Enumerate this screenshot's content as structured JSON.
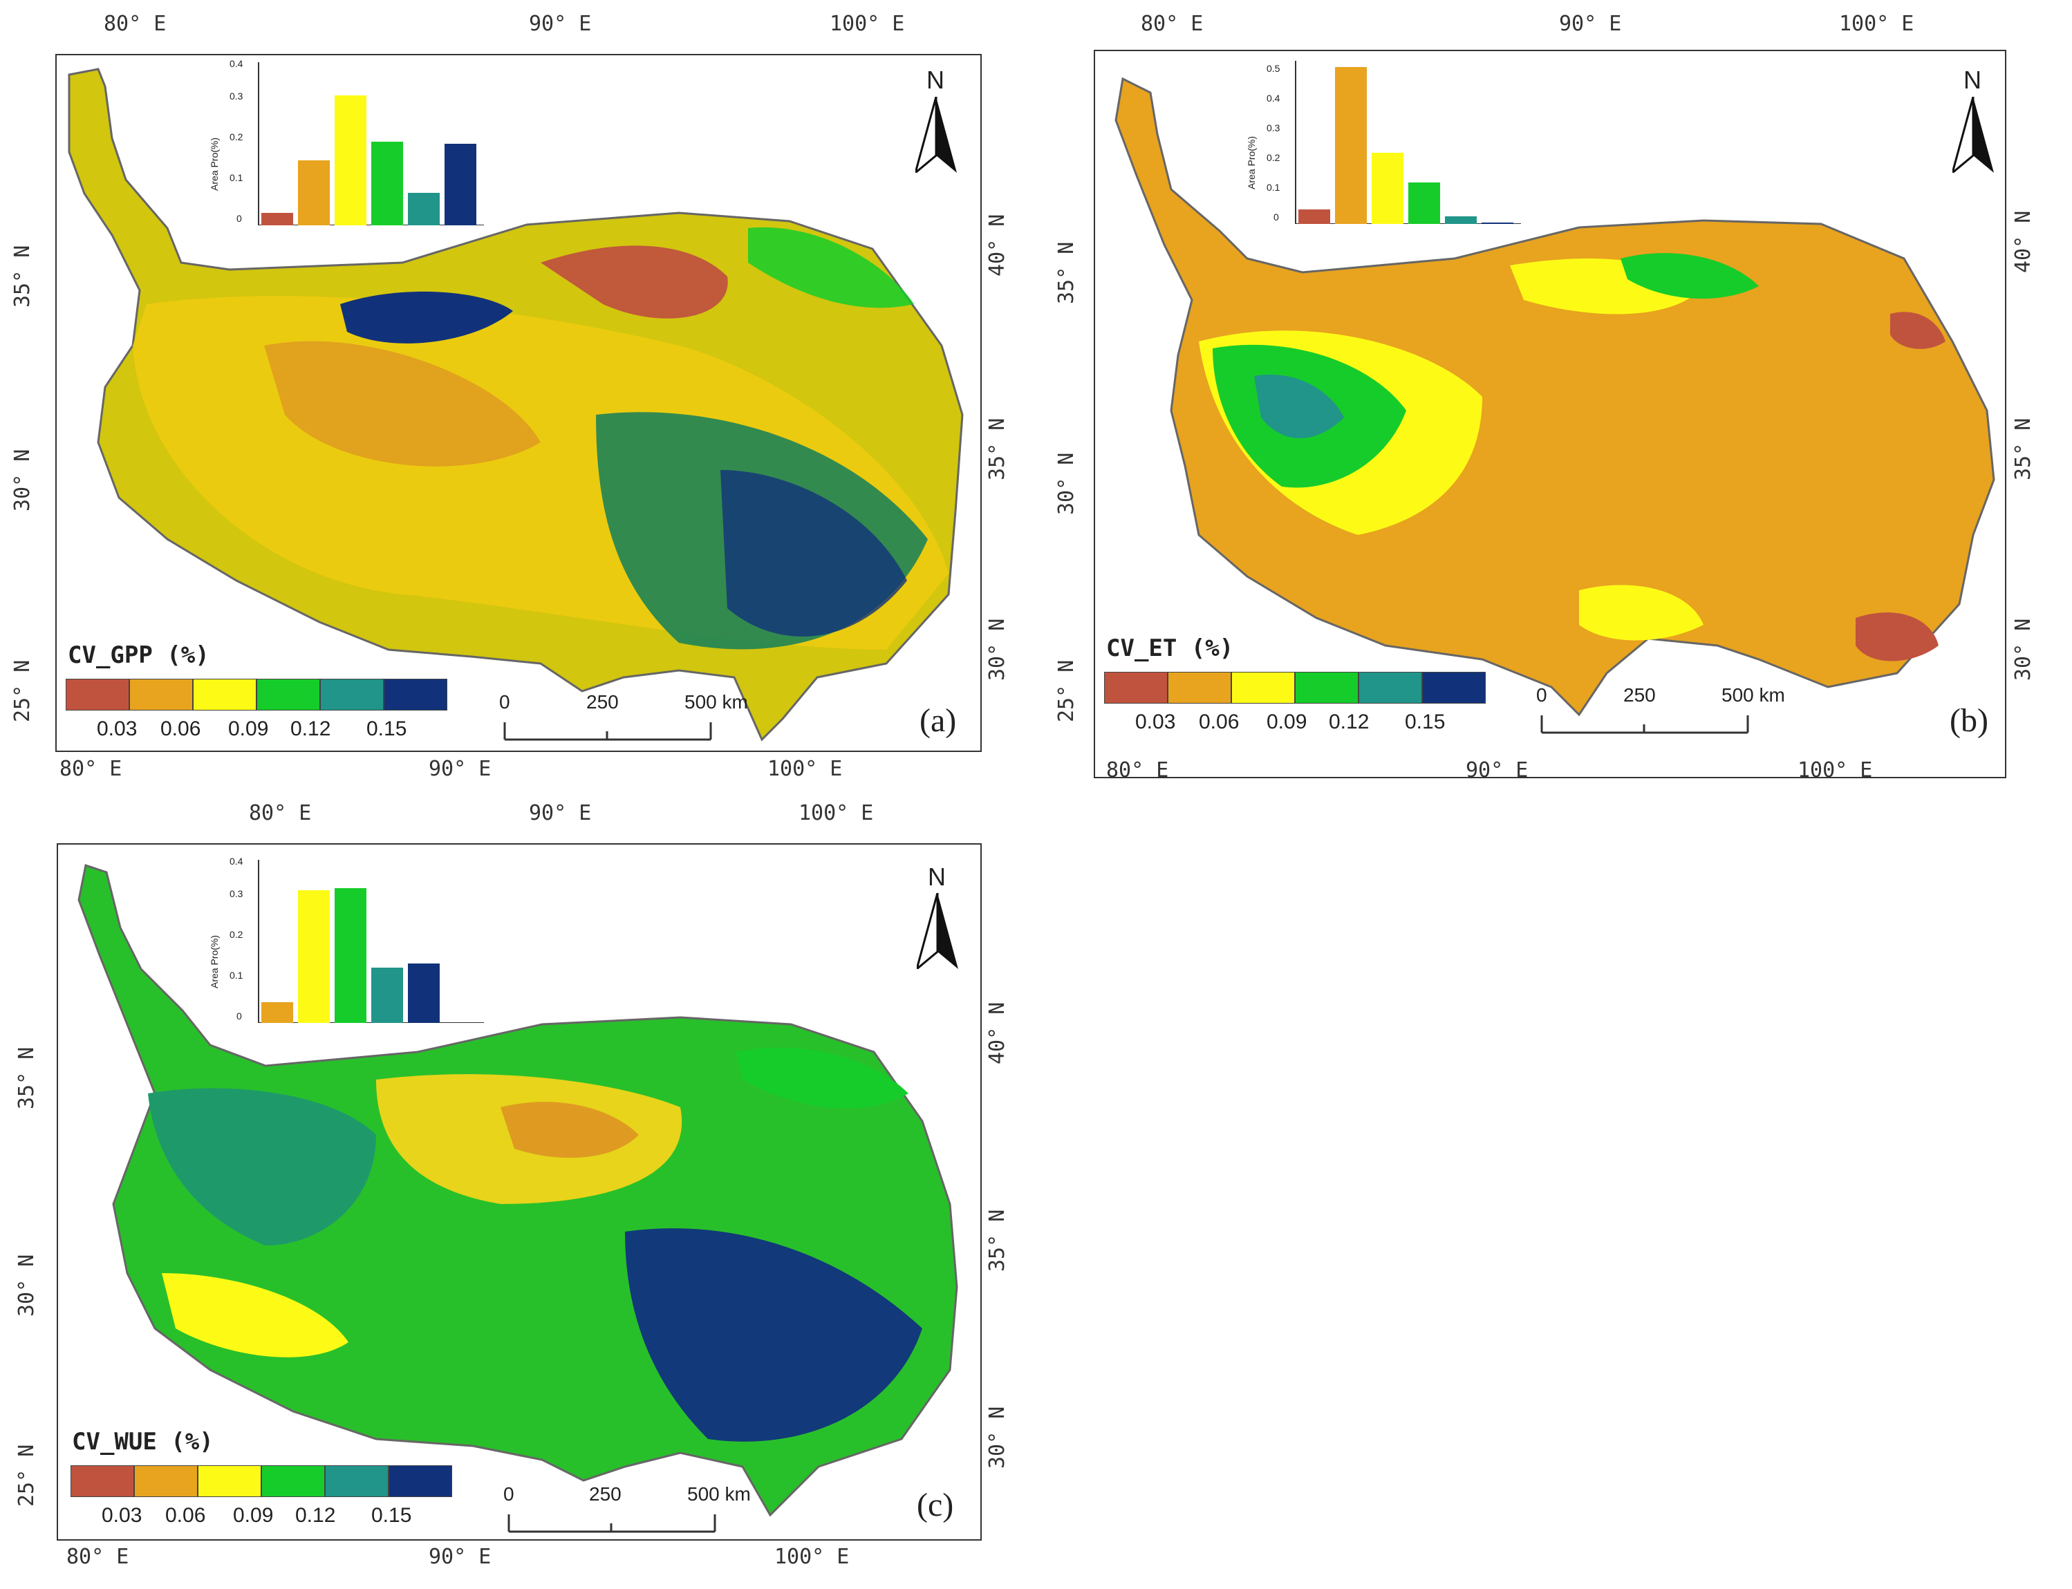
{
  "colors": {
    "c1": "#c0533e",
    "c2": "#e8a31f",
    "c3": "#fdfb16",
    "c4": "#16cc2a",
    "c5": "#21958a",
    "c6": "#11327a"
  },
  "panels": [
    {
      "id": "a",
      "label": "(a)",
      "legend_title": "CV_GPP (%)",
      "legend_values": [
        "0.03",
        "0.06",
        "0.09",
        "0.12",
        "0.15"
      ],
      "inset": {
        "ylabel": "Area Pro(%)",
        "ymax": 0.4,
        "yticks": [
          "0",
          "0.1",
          "0.2",
          "0.3",
          "0.4"
        ],
        "values": [
          0.03,
          0.16,
          0.32,
          0.205,
          0.08,
          0.2
        ]
      },
      "top_ticks": [
        "80°  E",
        "90°  E",
        "100°  E"
      ],
      "bottom_ticks": [
        "80°  E",
        "90°  E",
        "100°  E"
      ],
      "left_ticks": [
        "35°  N",
        "30°  N",
        "25°  N"
      ],
      "right_ticks": [
        "40°  N",
        "35°  N",
        "30°  N"
      ],
      "scale": [
        "0",
        "250",
        "500 km"
      ],
      "north": "N"
    },
    {
      "id": "b",
      "label": "(b)",
      "legend_title": "CV_ET (%)",
      "legend_values": [
        "0.03",
        "0.06",
        "0.09",
        "0.12",
        "0.15"
      ],
      "inset": {
        "ylabel": "Area Pro(%)",
        "ymax": 0.55,
        "yticks": [
          "0",
          "0.1",
          "0.2",
          "0.3",
          "0.4",
          "0.5"
        ],
        "values": [
          0.05,
          0.53,
          0.24,
          0.14,
          0.025,
          0.005
        ]
      },
      "top_ticks": [
        "80°  E",
        "90°  E",
        "100°  E"
      ],
      "bottom_ticks": [
        "80°  E",
        "90°  E",
        "100°  E"
      ],
      "left_ticks": [
        "35°  N",
        "30°  N",
        "25°  N"
      ],
      "right_ticks": [
        "40°  N",
        "35°  N",
        "30°  N"
      ],
      "scale": [
        "0",
        "250",
        "500 km"
      ],
      "north": "N"
    },
    {
      "id": "c",
      "label": "(c)",
      "legend_title": "CV_WUE (%)",
      "legend_values": [
        "0.03",
        "0.06",
        "0.09",
        "0.12",
        "0.15"
      ],
      "inset": {
        "ylabel": "Area Pro(%)",
        "ymax": 0.4,
        "yticks": [
          "0",
          "0.1",
          "0.2",
          "0.3",
          "0.4"
        ],
        "values": [
          0,
          0.05,
          0.325,
          0.33,
          0.135,
          0.145
        ]
      },
      "top_ticks": [
        "80°  E",
        "90°  E",
        "100°  E"
      ],
      "bottom_ticks": [
        "80°  E",
        "90°  E",
        "100°  E"
      ],
      "left_ticks": [
        "35°  N",
        "30°  N",
        "25°  N"
      ],
      "right_ticks": [
        "40°  N",
        "35°  N",
        "30°  N"
      ],
      "scale": [
        "0",
        "250",
        "500 km"
      ],
      "north": "N"
    }
  ]
}
